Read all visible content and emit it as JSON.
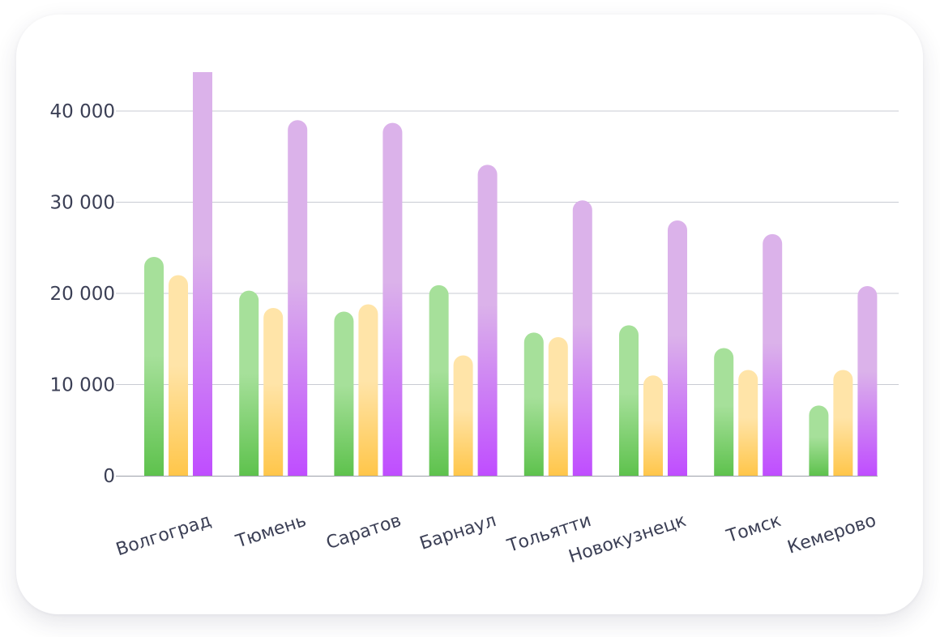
{
  "chart_data": {
    "type": "bar",
    "title": "",
    "xlabel": "",
    "ylabel": "",
    "categories": [
      "Волгоград",
      "Тюмень",
      "Саратов",
      "Барнаул",
      "Тольятти",
      "Новокузнецк",
      "Томск",
      "Кемерово"
    ],
    "series": [
      {
        "values": [
          24000,
          20300,
          18000,
          20900,
          15700,
          16500,
          14000,
          7700
        ]
      },
      {
        "values": [
          22000,
          18400,
          18800,
          13200,
          15200,
          11000,
          11600,
          11600
        ]
      },
      {
        "values": [
          44800,
          39000,
          38700,
          34100,
          30200,
          28000,
          26500,
          20800
        ]
      }
    ],
    "ylim": [
      0,
      44800
    ],
    "yticks": [
      0,
      10000,
      20000,
      30000,
      40000
    ],
    "ytick_labels": [
      "0",
      "10 000",
      "20 000",
      "30 000",
      "40 000"
    ],
    "grid": true,
    "legend": "none",
    "colors": {
      "series": [
        {
          "top": "#a6e09a",
          "bottom": "#5ec24d"
        },
        {
          "top": "#ffe4a8",
          "bottom": "#ffc64a"
        },
        {
          "top": "#dbb2ea",
          "bottom": "#bf4dff"
        }
      ],
      "grid": "#c9cbd3",
      "axis": "#9da0aa",
      "text": "#3b3f55"
    }
  }
}
